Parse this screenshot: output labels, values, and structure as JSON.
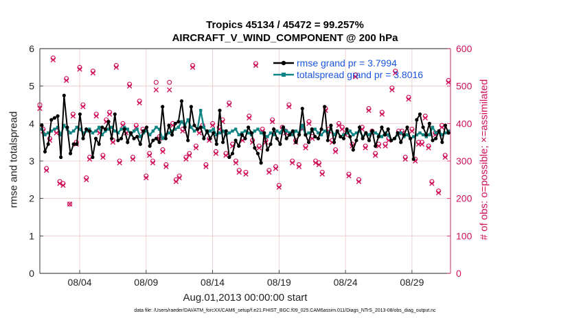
{
  "title_line1": "Tropics 45134 / 45472 = 99.257%",
  "title_line2": "AIRCRAFT_V_WIND_COMPONENT @ 200 hPa",
  "footnote": "data file: /Users/raeder/DAI/ATM_forcXX/CAM6_setup/f.e21.FHIST_BGC.f09_025.CAM6assim.011/Diags_NTrS_2013-08/obs_diag_output.nc",
  "colors": {
    "rmse": "#000000",
    "spread": "#0f8482",
    "obs": "#d0105a",
    "legend_text": "#1a55e0",
    "grid": "#e8c8c8"
  },
  "chart_data": {
    "type": "line",
    "xlabel": "Aug.01,2013 00:00:00 start",
    "ylabel_left": "rmse and totalspread",
    "ylabel_right": "# of obs: o=possible; ×=assimilated",
    "x_range": [
      1.0,
      31.9
    ],
    "ylim_left": [
      0,
      6
    ],
    "ylim_right": [
      0,
      600
    ],
    "x_ticks": [
      4,
      9,
      14,
      19,
      24,
      29
    ],
    "x_tick_labels": [
      "08/04",
      "08/09",
      "08/14",
      "08/19",
      "08/24",
      "08/29"
    ],
    "y_ticks_left": [
      0,
      1,
      2,
      3,
      4,
      5,
      6
    ],
    "y_ticks_right": [
      0,
      100,
      200,
      300,
      400,
      500,
      600
    ],
    "grid": true,
    "legend_position": "top-right",
    "series": [
      {
        "name": "rmse grand pr = 3.7994",
        "axis": "left",
        "marker": "filled-circle",
        "values": [
          3.95,
          3.25,
          3.45,
          4.1,
          4.15,
          4.2,
          3.1,
          4.75,
          3.9,
          3.2,
          3.45,
          3.45,
          4.25,
          3.6,
          3.85,
          3.8,
          3.1,
          3.6,
          3.45,
          3.9,
          3.85,
          4.05,
          3.6,
          4.25,
          3.55,
          3.6,
          3.85,
          3.5,
          3.75,
          3.6,
          3.65,
          3.45,
          3.8,
          3.9,
          3.4,
          3.55,
          3.6,
          3.5,
          4.45,
          3.6,
          3.95,
          3.7,
          4.0,
          4.05,
          4.6,
          3.9,
          3.55,
          4.45,
          3.95,
          3.85,
          3.9,
          3.6,
          3.8,
          3.6,
          3.75,
          3.45,
          4.35,
          3.5,
          3.8,
          3.1,
          3.2,
          3.55,
          3.4,
          3.7,
          3.6,
          3.9,
          3.75,
          3.35,
          3.2,
          2.95,
          3.75,
          3.3,
          3.45,
          3.85,
          3.6,
          3.45,
          3.9,
          3.6,
          3.7,
          3.8,
          3.5,
          3.7,
          4.4,
          3.7,
          3.5,
          3.85,
          3.65,
          3.6,
          3.85,
          4.45,
          3.55,
          3.95,
          3.5,
          3.8,
          3.65,
          3.6,
          3.85,
          3.65,
          3.3,
          3.55,
          3.9,
          3.6,
          3.75,
          3.55,
          3.8,
          3.4,
          3.65,
          3.9,
          3.7,
          3.85,
          3.55,
          3.6,
          3.75,
          3.5,
          3.7,
          3.9,
          3.6,
          3.05,
          4.1,
          4.25,
          3.9,
          3.7,
          4.0,
          3.55,
          3.6,
          3.8,
          3.5,
          3.95,
          3.75
        ]
      },
      {
        "name": "totalspread grand pr = 3.8016",
        "axis": "left",
        "marker": "filled-square",
        "values": [
          3.85,
          3.7,
          3.75,
          3.8,
          3.85,
          3.9,
          3.7,
          3.95,
          3.85,
          3.75,
          3.8,
          3.9,
          3.85,
          3.75,
          3.8,
          3.85,
          3.75,
          3.8,
          3.9,
          3.7,
          3.8,
          3.85,
          3.9,
          3.8,
          3.75,
          3.85,
          3.9,
          3.85,
          3.7,
          3.8,
          3.85,
          3.65,
          3.75,
          3.8,
          3.7,
          3.8,
          3.9,
          3.85,
          3.6,
          3.7,
          3.75,
          3.8,
          3.85,
          3.9,
          4.05,
          3.95,
          4.1,
          3.9,
          3.8,
          3.85,
          4.35,
          3.9,
          3.75,
          3.8,
          3.85,
          3.7,
          3.75,
          3.8,
          3.7,
          3.75,
          3.8,
          3.85,
          3.7,
          3.75,
          3.8,
          3.75,
          3.7,
          3.8,
          3.85,
          3.75,
          3.7,
          3.65,
          3.75,
          3.7,
          3.8,
          3.75,
          3.9,
          3.8,
          3.75,
          3.7,
          3.8,
          3.75,
          3.95,
          3.7,
          3.75,
          3.8,
          3.85,
          3.75,
          3.7,
          3.8,
          3.75,
          3.85,
          3.7,
          3.8,
          3.65,
          3.7,
          3.75,
          3.8,
          3.7,
          3.75,
          3.8,
          3.65,
          3.75,
          3.7,
          3.8,
          3.75,
          3.7,
          3.65,
          3.75,
          3.7,
          3.55,
          3.6,
          3.7,
          3.75,
          3.65,
          3.7,
          3.6,
          3.65,
          3.7,
          3.75,
          3.7,
          3.65,
          3.7,
          3.9,
          3.75,
          3.8,
          3.7,
          3.75,
          3.8
        ]
      }
    ],
    "obs_counts": {
      "name": "# of obs",
      "axis": "right",
      "x": [
        1.0,
        1.25,
        1.5,
        1.75,
        2.0,
        2.25,
        2.5,
        2.75,
        3.0,
        3.25,
        3.5,
        3.75,
        4.0,
        4.25,
        4.5,
        4.75,
        5.0,
        5.25,
        5.5,
        5.75,
        6.0,
        6.25,
        6.5,
        6.75,
        7.0,
        7.25,
        7.5,
        7.75,
        8.0,
        8.25,
        8.5,
        8.75,
        9.0,
        9.25,
        9.5,
        9.75,
        10.0,
        10.25,
        10.5,
        10.75,
        11.0,
        11.25,
        11.5,
        11.75,
        12.0,
        12.25,
        12.5,
        12.75,
        13.0,
        13.25,
        13.5,
        13.75,
        14.0,
        14.25,
        14.5,
        14.75,
        15.0,
        15.25,
        15.5,
        15.75,
        16.0,
        16.25,
        16.5,
        16.75,
        17.0,
        17.25,
        17.5,
        17.75,
        18.0,
        18.25,
        18.5,
        18.75,
        19.0,
        19.25,
        19.5,
        19.75,
        20.0,
        20.25,
        20.5,
        20.75,
        21.0,
        21.25,
        21.5,
        21.75,
        22.0,
        22.25,
        22.5,
        22.75,
        23.0,
        23.25,
        23.5,
        23.75,
        24.0,
        24.25,
        24.5,
        24.75,
        25.0,
        25.25,
        25.5,
        25.75,
        26.0,
        26.25,
        26.5,
        26.75,
        27.0,
        27.25,
        27.5,
        27.75,
        28.0,
        28.25,
        28.5,
        28.75,
        29.0,
        29.25,
        29.5,
        29.75,
        30.0,
        30.25,
        30.5,
        30.75,
        31.0,
        31.25,
        31.5,
        31.75
      ],
      "possible": [
        450,
        385,
        280,
        360,
        575,
        380,
        245,
        240,
        520,
        185,
        425,
        350,
        550,
        450,
        255,
        310,
        540,
        425,
        380,
        315,
        410,
        430,
        355,
        555,
        300,
        400,
        380,
        505,
        310,
        395,
        460,
        385,
        260,
        320,
        300,
        510,
        365,
        330,
        290,
        510,
        400,
        250,
        260,
        385,
        310,
        320,
        555,
        340,
        380,
        395,
        290,
        360,
        400,
        325,
        390,
        410,
        320,
        455,
        345,
        300,
        275,
        360,
        270,
        420,
        355,
        560,
        340,
        385,
        355,
        275,
        410,
        285,
        235,
        390,
        380,
        450,
        300,
        355,
        290,
        390,
        340,
        405,
        365,
        300,
        295,
        270,
        440,
        385,
        355,
        330,
        400,
        390,
        375,
        265,
        345,
        530,
        250,
        390,
        340,
        440,
        380,
        320,
        345,
        430,
        345,
        360,
        495,
        540,
        380,
        380,
        310,
        470,
        385,
        305,
        350,
        350,
        420,
        340,
        245,
        375,
        220,
        395,
        315,
        515,
        360,
        340,
        450,
        285,
        245,
        0
      ],
      "assimilated": [
        440,
        380,
        275,
        355,
        570,
        375,
        240,
        235,
        515,
        185,
        420,
        345,
        545,
        445,
        250,
        305,
        535,
        420,
        375,
        310,
        405,
        425,
        350,
        550,
        295,
        395,
        375,
        500,
        305,
        390,
        455,
        380,
        255,
        315,
        295,
        490,
        360,
        325,
        285,
        490,
        395,
        245,
        255,
        380,
        305,
        315,
        550,
        335,
        375,
        390,
        285,
        355,
        395,
        320,
        385,
        405,
        315,
        450,
        340,
        295,
        270,
        355,
        265,
        415,
        350,
        555,
        335,
        380,
        350,
        270,
        405,
        280,
        230,
        385,
        375,
        445,
        295,
        350,
        285,
        385,
        335,
        400,
        360,
        295,
        290,
        265,
        435,
        380,
        350,
        325,
        395,
        385,
        370,
        260,
        340,
        525,
        245,
        385,
        335,
        435,
        375,
        315,
        340,
        425,
        340,
        355,
        490,
        535,
        375,
        375,
        305,
        465,
        380,
        300,
        345,
        345,
        415,
        335,
        240,
        370,
        215,
        390,
        310,
        510,
        355,
        335,
        445,
        280,
        240,
        0
      ]
    }
  }
}
